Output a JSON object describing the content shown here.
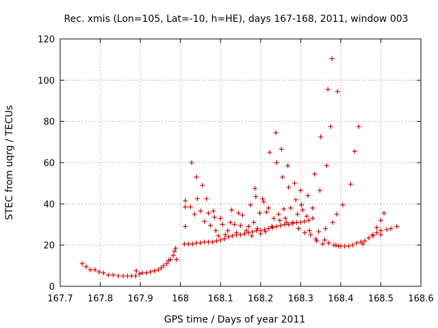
{
  "chart_data": {
    "type": "scatter",
    "title": "Rec. xmis (Lon=105, Lat=-10, h=HE), days 167-168, 2011, window 003",
    "xlabel": "GPS time / Days of year 2011",
    "ylabel": "STEC from uqrg / TECUs",
    "xlim": [
      167.7,
      168.6
    ],
    "ylim": [
      0,
      120
    ],
    "xticks": [
      "167.7",
      "167.8",
      "167.9",
      "168",
      "168.1",
      "168.2",
      "168.3",
      "168.4",
      "168.5",
      "168.6"
    ],
    "yticks": [
      "0",
      "20",
      "40",
      "60",
      "80",
      "100",
      "120"
    ],
    "grid": true,
    "marker": "+",
    "color": "#cc0000",
    "series": [
      {
        "points": [
          [
            167.755,
            11
          ],
          [
            167.765,
            9.5
          ],
          [
            167.775,
            8
          ],
          [
            167.787,
            8
          ],
          [
            167.797,
            7
          ],
          [
            167.808,
            6.5
          ],
          [
            167.82,
            5.5
          ],
          [
            167.832,
            5.5
          ],
          [
            167.845,
            5
          ],
          [
            167.857,
            5
          ],
          [
            167.868,
            5
          ],
          [
            167.878,
            5
          ],
          [
            167.888,
            5
          ],
          [
            167.89,
            7.5
          ],
          [
            167.898,
            6
          ],
          [
            167.905,
            6.5
          ],
          [
            167.915,
            6.5
          ],
          [
            167.925,
            7
          ],
          [
            167.935,
            7.5
          ],
          [
            167.945,
            8
          ],
          [
            167.952,
            9
          ],
          [
            167.958,
            10
          ],
          [
            167.966,
            11
          ],
          [
            167.97,
            12.5
          ],
          [
            167.975,
            13
          ],
          [
            167.982,
            15
          ],
          [
            167.985,
            17
          ],
          [
            167.988,
            18.5
          ],
          [
            167.99,
            13
          ],
          [
            168.01,
            20.5
          ],
          [
            168.02,
            20.5
          ],
          [
            168.03,
            20.5
          ],
          [
            168.04,
            21
          ],
          [
            168.05,
            21
          ],
          [
            168.06,
            21.5
          ],
          [
            168.07,
            21.5
          ],
          [
            168.08,
            21.5
          ],
          [
            168.09,
            22
          ],
          [
            168.1,
            22.5
          ],
          [
            168.11,
            23
          ],
          [
            168.12,
            24
          ],
          [
            168.13,
            24.5
          ],
          [
            168.14,
            25
          ],
          [
            168.15,
            25
          ],
          [
            168.16,
            25.5
          ],
          [
            168.17,
            26
          ],
          [
            168.18,
            26.5
          ],
          [
            168.19,
            27
          ],
          [
            168.2,
            27
          ],
          [
            168.21,
            27.5
          ],
          [
            168.22,
            28
          ],
          [
            168.23,
            28.5
          ],
          [
            168.24,
            29
          ],
          [
            168.25,
            29.5
          ],
          [
            168.26,
            30
          ],
          [
            168.27,
            30
          ],
          [
            168.28,
            30.5
          ],
          [
            168.29,
            31
          ],
          [
            168.3,
            31
          ],
          [
            168.31,
            31.5
          ],
          [
            168.32,
            32
          ],
          [
            168.33,
            33
          ],
          [
            168.012,
            29
          ],
          [
            168.012,
            38.5
          ],
          [
            168.012,
            41.5
          ],
          [
            168.025,
            38.5
          ],
          [
            168.028,
            60
          ],
          [
            168.035,
            35
          ],
          [
            168.04,
            53
          ],
          [
            168.042,
            42.5
          ],
          [
            168.05,
            36.5
          ],
          [
            168.055,
            49
          ],
          [
            168.06,
            31.5
          ],
          [
            168.065,
            42.5
          ],
          [
            168.07,
            35.5
          ],
          [
            168.075,
            29.5
          ],
          [
            168.082,
            36.5
          ],
          [
            168.085,
            33.5
          ],
          [
            168.088,
            27
          ],
          [
            168.095,
            24.5
          ],
          [
            168.1,
            33
          ],
          [
            168.105,
            30
          ],
          [
            168.112,
            25
          ],
          [
            168.118,
            27
          ],
          [
            168.125,
            31
          ],
          [
            168.128,
            37
          ],
          [
            168.135,
            30
          ],
          [
            168.14,
            26
          ],
          [
            168.145,
            35.5
          ],
          [
            168.15,
            29.5
          ],
          [
            168.155,
            34.5
          ],
          [
            168.16,
            25.5
          ],
          [
            168.165,
            27
          ],
          [
            168.17,
            29
          ],
          [
            168.175,
            39.5
          ],
          [
            168.178,
            24.5
          ],
          [
            168.183,
            31
          ],
          [
            168.186,
            47.5
          ],
          [
            168.188,
            43.5
          ],
          [
            168.192,
            28
          ],
          [
            168.198,
            35.5
          ],
          [
            168.2,
            25.5
          ],
          [
            168.205,
            42.5
          ],
          [
            168.208,
            41
          ],
          [
            168.212,
            26.5
          ],
          [
            168.215,
            36
          ],
          [
            168.22,
            38
          ],
          [
            168.223,
            65
          ],
          [
            168.228,
            29
          ],
          [
            168.233,
            33
          ],
          [
            168.238,
            74.5
          ],
          [
            168.24,
            60
          ],
          [
            168.245,
            35
          ],
          [
            168.248,
            32
          ],
          [
            168.252,
            66.5
          ],
          [
            168.255,
            53
          ],
          [
            168.258,
            37.5
          ],
          [
            168.262,
            33
          ],
          [
            168.265,
            31
          ],
          [
            168.268,
            58.5
          ],
          [
            168.27,
            48
          ],
          [
            168.275,
            38
          ],
          [
            168.28,
            31
          ],
          [
            168.285,
            50
          ],
          [
            168.288,
            42
          ],
          [
            168.292,
            35
          ],
          [
            168.295,
            28
          ],
          [
            168.3,
            46.5
          ],
          [
            168.302,
            39.5
          ],
          [
            168.305,
            37
          ],
          [
            168.31,
            26
          ],
          [
            168.315,
            34
          ],
          [
            168.318,
            44
          ],
          [
            168.322,
            27
          ],
          [
            168.325,
            25
          ],
          [
            168.33,
            38
          ],
          [
            168.335,
            54.5
          ],
          [
            168.338,
            23
          ],
          [
            168.34,
            22
          ],
          [
            168.345,
            26.5
          ],
          [
            168.348,
            46.5
          ],
          [
            168.35,
            72.5
          ],
          [
            168.355,
            20.5
          ],
          [
            168.36,
            22.5
          ],
          [
            168.362,
            28
          ],
          [
            168.365,
            58.5
          ],
          [
            168.368,
            95.5
          ],
          [
            168.37,
            21
          ],
          [
            168.375,
            77.5
          ],
          [
            168.378,
            110.5
          ],
          [
            168.38,
            31
          ],
          [
            168.383,
            20
          ],
          [
            168.388,
            20
          ],
          [
            168.39,
            35
          ],
          [
            168.392,
            94.5
          ],
          [
            168.395,
            19.5
          ],
          [
            168.4,
            19.5
          ],
          [
            168.405,
            39.5
          ],
          [
            168.41,
            19.5
          ],
          [
            168.42,
            19.5
          ],
          [
            168.425,
            49.5
          ],
          [
            168.43,
            20
          ],
          [
            168.435,
            65.5
          ],
          [
            168.44,
            21
          ],
          [
            168.445,
            77.5
          ],
          [
            168.45,
            21.5
          ],
          [
            168.46,
            22
          ],
          [
            168.47,
            23.5
          ],
          [
            168.48,
            24.5
          ],
          [
            168.49,
            26
          ],
          [
            168.5,
            27
          ],
          [
            168.508,
            35.5
          ],
          [
            168.515,
            27.5
          ],
          [
            168.525,
            28
          ],
          [
            168.54,
            29
          ],
          [
            168.455,
            20.5
          ],
          [
            168.48,
            25
          ],
          [
            168.49,
            28.5
          ],
          [
            168.5,
            32
          ],
          [
            168.5,
            25
          ]
        ]
      }
    ]
  }
}
